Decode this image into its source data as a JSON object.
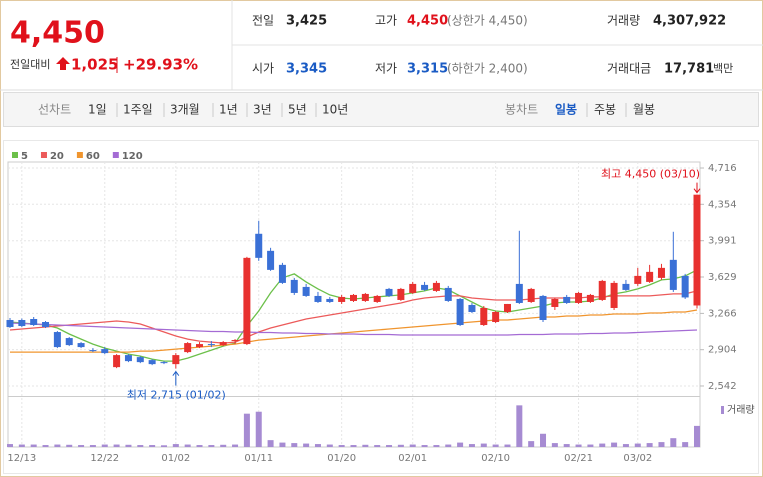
{
  "header": {
    "price": "4,450",
    "change_label": "전일대비",
    "change": "1,025",
    "change_pct": "+29.93%",
    "stats": [
      {
        "label": "전일",
        "value": "3,425"
      },
      {
        "label": "고가",
        "value": "4,450",
        "note": "(상한가 4,450)"
      },
      {
        "label": "거래량",
        "value": "4,307,922"
      },
      {
        "label": "시가",
        "value": "3,345"
      },
      {
        "label": "저가",
        "value": "3,315",
        "note": "(하한가 2,400)"
      },
      {
        "label": "거래대금",
        "value": "17,781",
        "unit": "백만"
      }
    ]
  },
  "toolbar": {
    "line_label": "선차트",
    "line_tabs": [
      "1일",
      "1주일",
      "3개월",
      "1년",
      "3년",
      "5년",
      "10년"
    ],
    "candle_label": "봉차트",
    "candle_tabs": [
      "일봉",
      "주봉",
      "월봉"
    ]
  },
  "chart_data": {
    "type": "candlestick",
    "categories": [
      null,
      "12/13",
      null,
      null,
      null,
      null,
      null,
      null,
      "12/22",
      null,
      null,
      null,
      null,
      null,
      "01/02",
      null,
      null,
      null,
      null,
      null,
      null,
      "01/11",
      null,
      null,
      null,
      null,
      null,
      null,
      "01/20",
      null,
      null,
      null,
      null,
      null,
      "02/01",
      null,
      null,
      null,
      null,
      null,
      null,
      "02/10",
      null,
      null,
      null,
      null,
      null,
      null,
      "02/21",
      null,
      null,
      null,
      null,
      "03/02",
      null,
      null,
      null,
      null,
      null
    ],
    "open": [
      3200,
      3200,
      3210,
      3180,
      3080,
      3020,
      2970,
      2900,
      2910,
      2730,
      2850,
      2830,
      2800,
      2780,
      2760,
      2880,
      2930,
      2960,
      2950,
      2990,
      2960,
      4060,
      3890,
      3750,
      3600,
      3530,
      3440,
      3410,
      3380,
      3390,
      3390,
      3380,
      3510,
      3400,
      3470,
      3550,
      3490,
      3520,
      3410,
      3350,
      3150,
      3180,
      3280,
      3560,
      3380,
      3440,
      3330,
      3430,
      3370,
      3380,
      3400,
      3320,
      3560,
      3560,
      3580,
      3620,
      3800,
      3640,
      3345
    ],
    "high": [
      3220,
      3215,
      3230,
      3190,
      3090,
      3030,
      2980,
      2920,
      2930,
      2860,
      2860,
      2840,
      2810,
      2790,
      2870,
      2980,
      2980,
      2990,
      2990,
      3010,
      3830,
      4190,
      3920,
      3770,
      3620,
      3560,
      3480,
      3430,
      3450,
      3460,
      3470,
      3450,
      3520,
      3520,
      3580,
      3580,
      3590,
      3540,
      3420,
      3370,
      3340,
      3290,
      3360,
      4090,
      3520,
      3450,
      3420,
      3450,
      3480,
      3460,
      3600,
      3590,
      3600,
      3720,
      3750,
      3760,
      4080,
      3660,
      4450
    ],
    "low": [
      3120,
      3130,
      3140,
      3120,
      2920,
      2940,
      2920,
      2880,
      2860,
      2720,
      2780,
      2770,
      2750,
      2760,
      2715,
      2870,
      2920,
      2930,
      2940,
      2960,
      2950,
      3790,
      3690,
      3560,
      3450,
      3430,
      3370,
      3370,
      3360,
      3380,
      3380,
      3370,
      3430,
      3390,
      3460,
      3490,
      3480,
      3380,
      3140,
      3270,
      3140,
      3170,
      3270,
      3360,
      3370,
      3180,
      3300,
      3360,
      3360,
      3370,
      3390,
      3300,
      3490,
      3540,
      3570,
      3600,
      3480,
      3410,
      3315
    ],
    "close": [
      3130,
      3140,
      3150,
      3130,
      2930,
      2950,
      2930,
      2890,
      2870,
      2850,
      2790,
      2780,
      2760,
      2770,
      2850,
      2970,
      2960,
      2950,
      2980,
      3000,
      3820,
      3820,
      3700,
      3570,
      3470,
      3440,
      3380,
      3380,
      3430,
      3450,
      3460,
      3440,
      3440,
      3510,
      3560,
      3500,
      3570,
      3390,
      3150,
      3280,
      3320,
      3280,
      3360,
      3370,
      3510,
      3200,
      3410,
      3370,
      3470,
      3450,
      3590,
      3570,
      3500,
      3640,
      3680,
      3720,
      3500,
      3425,
      4450
    ],
    "up_color": "#e8312f",
    "down_color": "#3a70d6",
    "moving_averages": [
      {
        "name": "5",
        "color": "#6cc04a",
        "values": [
          3180,
          3170,
          3160,
          3150,
          3120,
          3060,
          3010,
          2960,
          2920,
          2890,
          2860,
          2840,
          2810,
          2790,
          2790,
          2820,
          2860,
          2900,
          2940,
          2970,
          3140,
          3290,
          3470,
          3620,
          3660,
          3580,
          3510,
          3450,
          3420,
          3410,
          3420,
          3430,
          3440,
          3450,
          3470,
          3490,
          3520,
          3500,
          3440,
          3380,
          3320,
          3290,
          3280,
          3300,
          3320,
          3340,
          3370,
          3380,
          3380,
          3390,
          3420,
          3460,
          3480,
          3510,
          3550,
          3600,
          3610,
          3640,
          3700
        ]
      },
      {
        "name": "20",
        "color": "#ec5a5a",
        "values": [
          3100,
          3110,
          3120,
          3130,
          3140,
          3150,
          3160,
          3170,
          3180,
          3190,
          3180,
          3160,
          3120,
          3080,
          3040,
          3010,
          2990,
          2980,
          2970,
          2980,
          3030,
          3080,
          3120,
          3150,
          3180,
          3210,
          3230,
          3250,
          3270,
          3290,
          3310,
          3330,
          3350,
          3370,
          3400,
          3420,
          3430,
          3440,
          3440,
          3420,
          3410,
          3400,
          3400,
          3400,
          3410,
          3420,
          3420,
          3420,
          3420,
          3430,
          3430,
          3440,
          3440,
          3440,
          3440,
          3450,
          3460,
          3460,
          3490
        ]
      },
      {
        "name": "60",
        "color": "#f0952e",
        "values": [
          2880,
          2880,
          2880,
          2880,
          2880,
          2880,
          2880,
          2880,
          2880,
          2880,
          2880,
          2890,
          2890,
          2900,
          2910,
          2920,
          2930,
          2940,
          2950,
          2960,
          2980,
          3000,
          3010,
          3020,
          3030,
          3040,
          3050,
          3060,
          3070,
          3080,
          3090,
          3100,
          3110,
          3120,
          3130,
          3140,
          3150,
          3160,
          3170,
          3180,
          3190,
          3200,
          3200,
          3210,
          3220,
          3230,
          3230,
          3240,
          3240,
          3250,
          3250,
          3260,
          3260,
          3260,
          3270,
          3270,
          3280,
          3280,
          3300
        ]
      },
      {
        "name": "120",
        "color": "#a46bd4",
        "values": [
          3170,
          3165,
          3160,
          3155,
          3150,
          3145,
          3140,
          3135,
          3130,
          3125,
          3120,
          3115,
          3110,
          3105,
          3100,
          3095,
          3090,
          3085,
          3085,
          3080,
          3080,
          3075,
          3075,
          3070,
          3070,
          3065,
          3065,
          3060,
          3060,
          3060,
          3055,
          3055,
          3055,
          3050,
          3050,
          3050,
          3050,
          3050,
          3050,
          3050,
          3050,
          3050,
          3050,
          3055,
          3055,
          3055,
          3060,
          3060,
          3060,
          3065,
          3065,
          3070,
          3070,
          3075,
          3080,
          3085,
          3090,
          3095,
          3100
        ]
      }
    ],
    "volume": {
      "name": "거래량",
      "color": "#a68bd2",
      "values": [
        600000,
        500000,
        500000,
        400000,
        500000,
        450000,
        400000,
        400000,
        500000,
        500000,
        450000,
        400000,
        400000,
        350000,
        600000,
        500000,
        400000,
        400000,
        450000,
        500000,
        6800000,
        7200000,
        1400000,
        900000,
        800000,
        700000,
        600000,
        500000,
        400000,
        400000,
        450000,
        400000,
        400000,
        450000,
        500000,
        400000,
        400000,
        500000,
        900000,
        600000,
        700000,
        500000,
        500000,
        8500000,
        1200000,
        2700000,
        800000,
        600000,
        500000,
        500000,
        700000,
        900000,
        600000,
        700000,
        800000,
        1000000,
        1800000,
        1000000,
        4307922
      ]
    },
    "volume_ylim": [
      0,
      10000000
    ],
    "ylim": [
      2452,
      4776
    ],
    "yticks": [
      {
        "value": 4716,
        "label": "4,716"
      },
      {
        "value": 4354,
        "label": "4,354"
      },
      {
        "value": 3991,
        "label": "3,991"
      },
      {
        "value": 3629,
        "label": "3,629"
      },
      {
        "value": 3266,
        "label": "3,266"
      },
      {
        "value": 2904,
        "label": "2,904"
      },
      {
        "value": 2542,
        "label": "2,542"
      }
    ],
    "grid": true,
    "high_annotation": "최고 4,450 (03/10)",
    "low_annotation": "최저 2,715 (01/02)"
  }
}
